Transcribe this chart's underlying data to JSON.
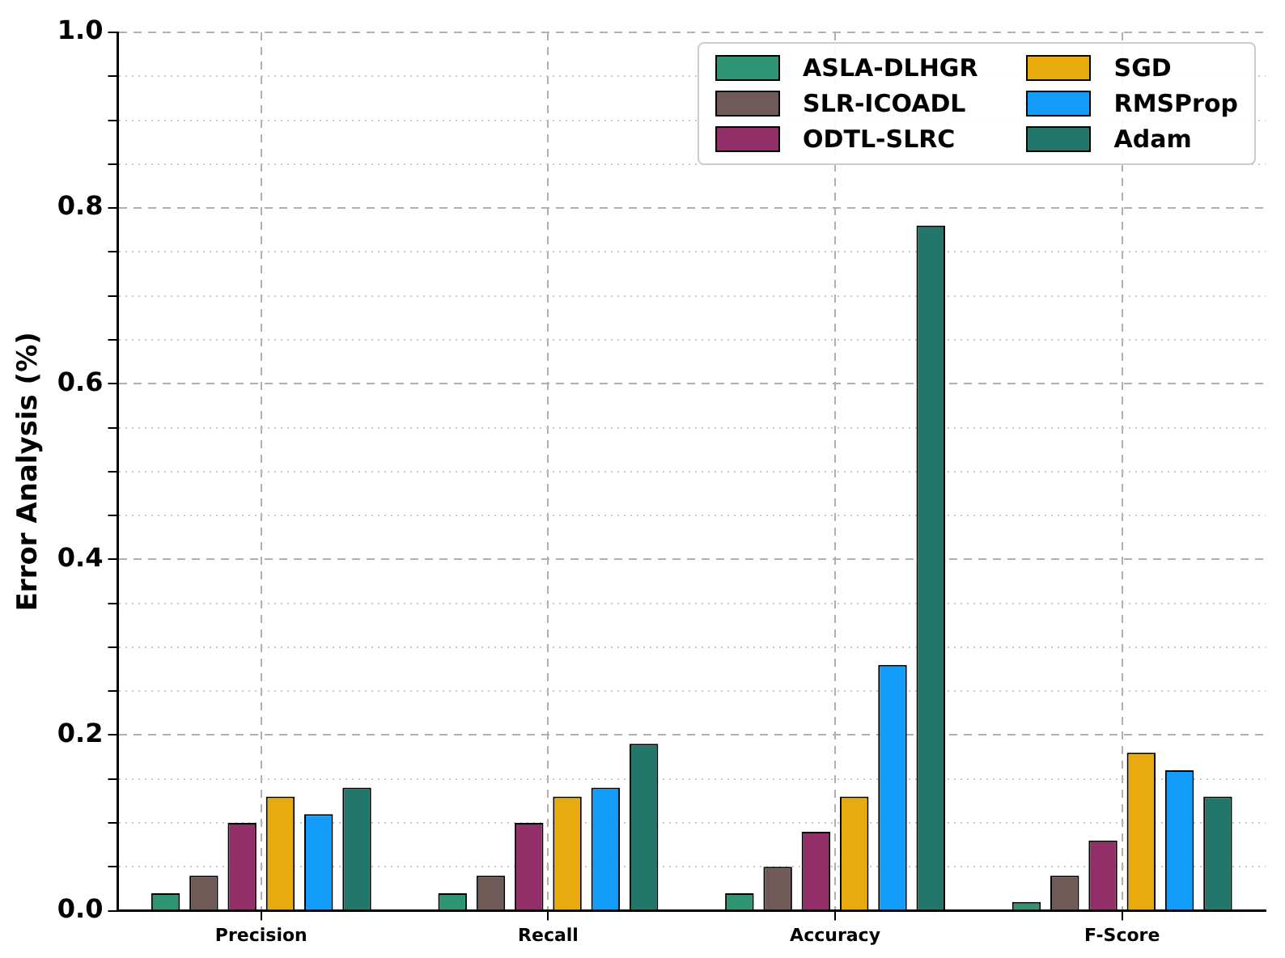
{
  "chart_data": {
    "type": "bar",
    "ylabel": "Error Analysis (%)",
    "categories": [
      "Precision",
      "Recall",
      "Accuracy",
      "F-Score"
    ],
    "series": [
      {
        "name": "ASLA-DLHGR",
        "color": "#2e9474",
        "values": [
          0.02,
          0.02,
          0.02,
          0.01
        ]
      },
      {
        "name": "SLR-ICOADL",
        "color": "#6f5a58",
        "values": [
          0.04,
          0.04,
          0.05,
          0.04
        ]
      },
      {
        "name": "ODTL-SLRC",
        "color": "#922f69",
        "values": [
          0.1,
          0.1,
          0.09,
          0.08
        ]
      },
      {
        "name": "SGD",
        "color": "#e8aa0c",
        "values": [
          0.13,
          0.13,
          0.13,
          0.18
        ]
      },
      {
        "name": "RMSProp",
        "color": "#139cf9",
        "values": [
          0.11,
          0.14,
          0.28,
          0.16
        ]
      },
      {
        "name": "Adam",
        "color": "#23776a",
        "values": [
          0.14,
          0.19,
          0.78,
          0.13
        ]
      }
    ],
    "ylim": [
      0,
      1
    ],
    "yticks": [
      {
        "value": 0,
        "label": "0.0"
      },
      {
        "value": 0.05,
        "label": null
      },
      {
        "value": 0.1,
        "label": null
      },
      {
        "value": 0.15,
        "label": null
      },
      0.2,
      {
        "value": 0.25,
        "label": null
      },
      {
        "value": 0.3,
        "label": null
      },
      {
        "value": 0.35,
        "label": null
      },
      0.4,
      {
        "value": 0.45,
        "label": null
      },
      {
        "value": 0.5,
        "label": null
      },
      {
        "value": 0.55,
        "label": null
      },
      0.6,
      {
        "value": 0.65,
        "label": null
      },
      {
        "value": 0.7,
        "label": null
      },
      {
        "value": 0.75,
        "label": null
      },
      0.8,
      {
        "value": 0.85,
        "label": null
      },
      {
        "value": 0.9,
        "label": null
      },
      {
        "value": 0.95,
        "label": null
      },
      {
        "value": 1,
        "label": "1.0"
      }
    ],
    "grid": true,
    "legend": "top right"
  }
}
